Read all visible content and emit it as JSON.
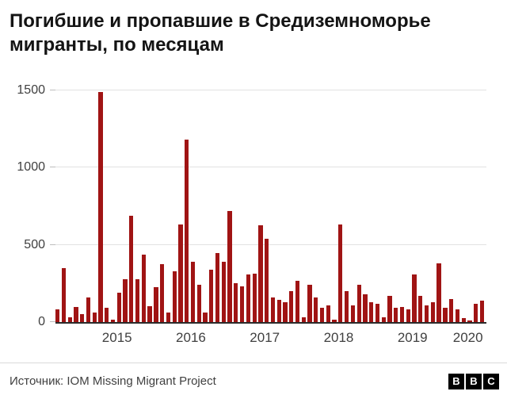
{
  "title": "Погибшие и пропавшие в Средиземноморье мигранты, по месяцам",
  "source": "Источник: IOM Missing Migrant Project",
  "logo": {
    "blocks": [
      "B",
      "B",
      "C"
    ]
  },
  "colors": {
    "bar": "#a01414",
    "grid": "#e2e2e2",
    "axis": "#2b2b2b",
    "text": "#141414",
    "muted_text": "#404040"
  },
  "chart_data": {
    "type": "bar",
    "title": "Погибшие и пропавшие в Средиземноморье мигранты, по месяцам",
    "xlabel": "",
    "ylabel": "",
    "ylim": [
      0,
      1500
    ],
    "yticks": [
      0,
      500,
      1000,
      1500
    ],
    "grid": "horizontal",
    "legend": "none",
    "xticks_years": [
      "2015",
      "2016",
      "2017",
      "2018",
      "2019",
      "2020"
    ],
    "x": [
      "2014-09",
      "2014-10",
      "2014-11",
      "2014-12",
      "2015-01",
      "2015-02",
      "2015-03",
      "2015-04",
      "2015-05",
      "2015-06",
      "2015-07",
      "2015-08",
      "2015-09",
      "2015-10",
      "2015-11",
      "2015-12",
      "2016-01",
      "2016-02",
      "2016-03",
      "2016-04",
      "2016-05",
      "2016-06",
      "2016-07",
      "2016-08",
      "2016-09",
      "2016-10",
      "2016-11",
      "2016-12",
      "2017-01",
      "2017-02",
      "2017-03",
      "2017-04",
      "2017-05",
      "2017-06",
      "2017-07",
      "2017-08",
      "2017-09",
      "2017-10",
      "2017-11",
      "2017-12",
      "2018-01",
      "2018-02",
      "2018-03",
      "2018-04",
      "2018-05",
      "2018-06",
      "2018-07",
      "2018-08",
      "2018-09",
      "2018-10",
      "2018-11",
      "2018-12",
      "2019-01",
      "2019-02",
      "2019-03",
      "2019-04",
      "2019-05",
      "2019-06",
      "2019-07",
      "2019-08",
      "2019-09",
      "2019-10",
      "2019-11",
      "2019-12",
      "2020-01",
      "2020-02",
      "2020-03",
      "2020-04",
      "2020-05",
      "2020-06"
    ],
    "values": [
      80,
      350,
      30,
      100,
      50,
      160,
      60,
      1490,
      95,
      15,
      190,
      275,
      690,
      280,
      435,
      105,
      225,
      375,
      60,
      330,
      630,
      1180,
      390,
      240,
      60,
      340,
      445,
      390,
      720,
      250,
      230,
      310,
      315,
      625,
      540,
      160,
      145,
      130,
      200,
      265,
      30,
      240,
      160,
      90,
      110,
      15,
      630,
      200,
      110,
      240,
      180,
      130,
      120,
      30,
      170,
      90,
      100,
      80,
      310,
      170,
      110,
      130,
      380,
      95,
      150,
      80,
      25,
      10,
      120,
      140
    ]
  }
}
